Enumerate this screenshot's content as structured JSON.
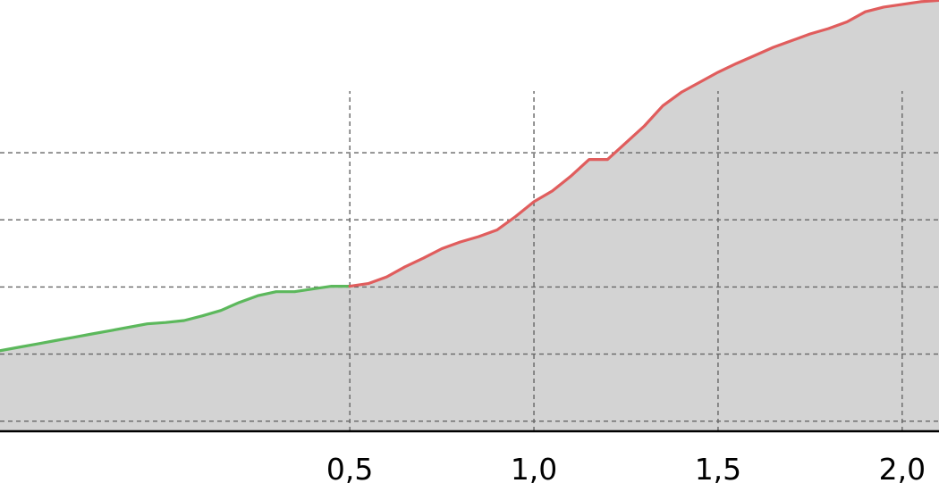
{
  "chart_data": {
    "type": "area",
    "title": "",
    "xlabel": "",
    "ylabel": "",
    "xlim": [
      -0.45,
      2.1
    ],
    "ylim": [
      0,
      6
    ],
    "x_ticks": [
      0.5,
      1.0,
      1.5,
      2.0
    ],
    "x_tick_labels": [
      "0,5",
      "1,0",
      "1,5",
      "2,0"
    ],
    "y_gridlines": [
      0.15,
      1.15,
      2.15,
      3.15,
      4.15
    ],
    "grid": true,
    "fill_color": "#d3d3d3",
    "segment_colors": {
      "green": "#5cb85c",
      "red": "#e05d5d"
    },
    "series": [
      {
        "color": "#5cb85c",
        "x": [
          -0.45,
          -0.4,
          -0.35,
          -0.3,
          -0.25,
          -0.2,
          -0.15,
          -0.1,
          -0.05,
          0.0,
          0.05,
          0.1,
          0.15,
          0.2,
          0.25,
          0.3,
          0.35,
          0.4,
          0.45,
          0.5
        ],
        "y": [
          1.2,
          1.25,
          1.3,
          1.35,
          1.4,
          1.45,
          1.5,
          1.55,
          1.6,
          1.62,
          1.65,
          1.72,
          1.8,
          1.92,
          2.02,
          2.08,
          2.08,
          2.12,
          2.16,
          2.16
        ]
      },
      {
        "color": "#e05d5d",
        "x": [
          0.5,
          0.55,
          0.6,
          0.65,
          0.7,
          0.75,
          0.8,
          0.85,
          0.9,
          0.95,
          1.0,
          1.05,
          1.1,
          1.15,
          1.2,
          1.25,
          1.3,
          1.35,
          1.4,
          1.45,
          1.5,
          1.55,
          1.6,
          1.65,
          1.7,
          1.75,
          1.8,
          1.85,
          1.9,
          1.95,
          2.0,
          2.05,
          2.1
        ],
        "y": [
          2.16,
          2.2,
          2.3,
          2.45,
          2.58,
          2.72,
          2.82,
          2.9,
          3.0,
          3.2,
          3.42,
          3.58,
          3.8,
          4.05,
          4.05,
          4.3,
          4.55,
          4.85,
          5.05,
          5.2,
          5.35,
          5.48,
          5.6,
          5.72,
          5.82,
          5.92,
          6.0,
          6.1,
          6.25,
          6.32,
          6.36,
          6.4,
          6.42
        ]
      }
    ]
  }
}
